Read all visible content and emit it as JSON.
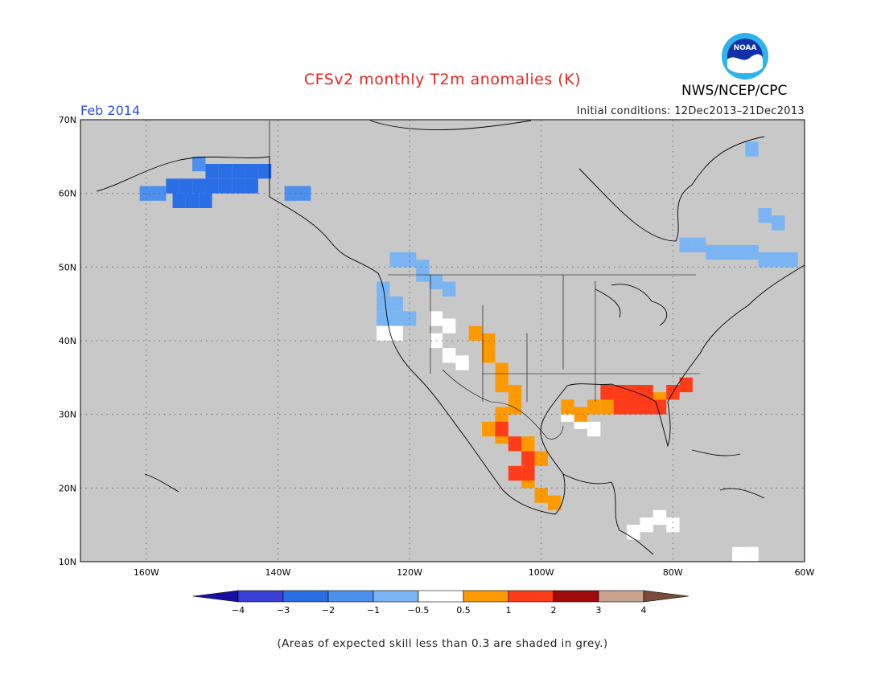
{
  "title": "CFSv2 monthly T2m anomalies (K)",
  "month_label": "Feb 2014",
  "initial_conditions": "Initial conditions: 12Dec2013–21Dec2013",
  "organization": "NWS/NCEP/CPC",
  "logo": {
    "text": "NOAA",
    "icon": "noaa-logo-icon"
  },
  "map": {
    "lon_range": [
      -170,
      -60
    ],
    "lat_range": [
      10,
      70
    ],
    "lat_labels": [
      "70N",
      "60N",
      "50N",
      "40N",
      "30N",
      "20N",
      "10N"
    ],
    "lat_values": [
      70,
      60,
      50,
      40,
      30,
      20,
      10
    ],
    "lon_labels": [
      "160W",
      "140W",
      "120W",
      "100W",
      "80W",
      "60W"
    ],
    "lon_values": [
      -160,
      -140,
      -120,
      -100,
      -80,
      -60
    ],
    "gridlines": "dotted",
    "background_color": "#c8c8c8",
    "anomaly_regions": [
      {
        "name": "Alaska",
        "color": "#2a6ee6",
        "cells": [
          [
            -156,
            61
          ],
          [
            -154,
            61
          ],
          [
            -152,
            61
          ],
          [
            -150,
            61
          ],
          [
            -148,
            61
          ],
          [
            -146,
            61
          ],
          [
            -144,
            61
          ],
          [
            -150,
            63
          ],
          [
            -148,
            63
          ],
          [
            -146,
            63
          ],
          [
            -144,
            63
          ],
          [
            -142,
            63
          ],
          [
            -155,
            59
          ],
          [
            -153,
            59
          ],
          [
            -151,
            59
          ]
        ]
      },
      {
        "name": "Alaska-light",
        "color": "#4c8fec",
        "cells": [
          [
            -158,
            60
          ],
          [
            -160,
            60
          ],
          [
            -152,
            64
          ],
          [
            -138,
            60
          ],
          [
            -136,
            60
          ]
        ]
      },
      {
        "name": "Pacific NW",
        "color": "#7ab4f2",
        "cells": [
          [
            -122,
            51
          ],
          [
            -120,
            51
          ],
          [
            -118,
            50
          ],
          [
            -124,
            47
          ],
          [
            -124,
            45
          ],
          [
            -122,
            45
          ],
          [
            -124,
            43
          ],
          [
            -122,
            43
          ],
          [
            -120,
            43
          ],
          [
            -118,
            49
          ],
          [
            -116,
            48
          ],
          [
            -114,
            47
          ]
        ]
      },
      {
        "name": "Eastern Canada",
        "color": "#7ab4f2",
        "cells": [
          [
            -78,
            53
          ],
          [
            -76,
            53
          ],
          [
            -74,
            52
          ],
          [
            -72,
            52
          ],
          [
            -70,
            52
          ],
          [
            -68,
            52
          ],
          [
            -66,
            51
          ],
          [
            -64,
            51
          ],
          [
            -62,
            51
          ],
          [
            -66,
            57
          ],
          [
            -64,
            56
          ],
          [
            -68,
            66
          ]
        ]
      },
      {
        "name": "Southwest white",
        "color": "#ffffff",
        "cells": [
          [
            -116,
            43
          ],
          [
            -114,
            42
          ],
          [
            -116,
            40
          ],
          [
            -114,
            38
          ],
          [
            -112,
            37
          ],
          [
            -124,
            41
          ],
          [
            -122,
            41
          ],
          [
            -96,
            30
          ],
          [
            -94,
            29
          ],
          [
            -92,
            28
          ]
        ]
      },
      {
        "name": "Rockies orange",
        "color": "#ff9900",
        "cells": [
          [
            -110,
            41
          ],
          [
            -108,
            40
          ],
          [
            -108,
            38
          ],
          [
            -106,
            36
          ],
          [
            -106,
            34
          ],
          [
            -104,
            33
          ],
          [
            -104,
            31
          ],
          [
            -106,
            30
          ],
          [
            -108,
            28
          ],
          [
            -106,
            27
          ],
          [
            -102,
            26
          ],
          [
            -100,
            24
          ],
          [
            -102,
            21
          ],
          [
            -100,
            19
          ],
          [
            -98,
            18
          ],
          [
            -96,
            31
          ],
          [
            -94,
            30
          ],
          [
            -92,
            31
          ],
          [
            -90,
            31
          ],
          [
            -84,
            32
          ],
          [
            -82,
            32
          ]
        ]
      },
      {
        "name": "Mexico red",
        "color": "#ff3c1a",
        "cells": [
          [
            -104,
            26
          ],
          [
            -102,
            24
          ],
          [
            -104,
            22
          ],
          [
            -102,
            22
          ],
          [
            -106,
            28
          ]
        ]
      },
      {
        "name": "Southeast red",
        "color": "#ff3c1a",
        "cells": [
          [
            -90,
            33
          ],
          [
            -88,
            33
          ],
          [
            -86,
            33
          ],
          [
            -84,
            33
          ],
          [
            -88,
            31
          ],
          [
            -86,
            31
          ],
          [
            -84,
            31
          ],
          [
            -82,
            31
          ],
          [
            -86,
            32
          ],
          [
            -80,
            33
          ],
          [
            -78,
            34
          ]
        ]
      },
      {
        "name": "Grey-skill white",
        "color": "#ffffff",
        "cells": [
          [
            -82,
            16
          ],
          [
            -80,
            15
          ],
          [
            -84,
            15
          ],
          [
            -86,
            14
          ],
          [
            -70,
            11
          ],
          [
            -68,
            11
          ]
        ]
      }
    ]
  },
  "colorbar": {
    "labels": [
      "−4",
      "−3",
      "−2",
      "−1",
      "−0.5",
      "0.5",
      "1",
      "2",
      "3",
      "4"
    ],
    "colors": [
      "#1a0fa3",
      "#3b3fd6",
      "#2a6ee6",
      "#4c8fec",
      "#7ab4f2",
      "#ffffff",
      "#ff9900",
      "#ff3c1a",
      "#a00a0a",
      "#c9a38f",
      "#7a4a3a"
    ]
  },
  "footnote": "(Areas of expected skill less than 0.3 are shaded in grey.)"
}
